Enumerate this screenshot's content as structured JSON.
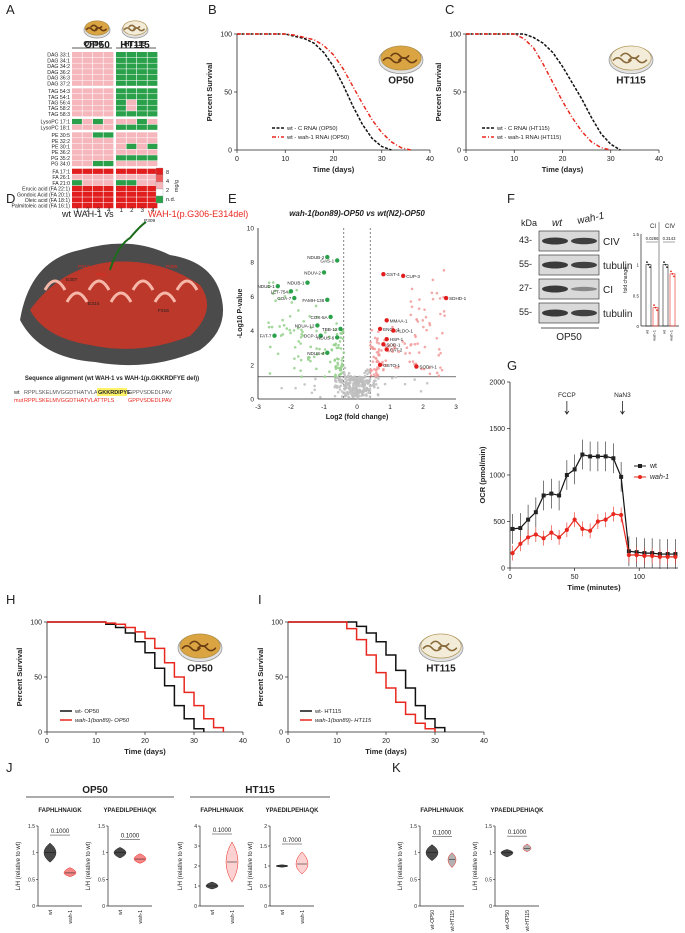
{
  "panel_letters": [
    "A",
    "B",
    "C",
    "D",
    "E",
    "F",
    "G",
    "H",
    "I",
    "J",
    "K"
  ],
  "colors": {
    "wt": "#111111",
    "mut": "#e8281e",
    "pink": "#f5b6bc",
    "green": "#2aa04a",
    "red": "#e11d1d",
    "grey": "#bdbdbd",
    "gold": "#c8902c"
  },
  "panelA": {
    "col_groups": [
      "OP50",
      "HT115"
    ],
    "dish_labels": [
      "OP50",
      "HT115"
    ],
    "col_numbers": [
      "1",
      "2",
      "3",
      "4",
      "1",
      "2",
      "3",
      "4"
    ],
    "rows": [
      "DAG 33:1",
      "DAG 34:1",
      "DAG 34:2",
      "DAG 36:2",
      "DAG 36:3",
      "DAG 37:2",
      "TAG 54:3",
      "TAG 54:1",
      "TAG 56:4",
      "TAG 58:2",
      "TAG 58:3",
      "LysoPC 17:1",
      "LysoPC 18:1",
      "PE 30:5",
      "PE 32:2",
      "PE 30:1",
      "PE 36:2",
      "PG 35:2",
      "PG 34:0",
      "FA 17:1",
      "FA 26:1",
      "FA 21:0",
      "Erucic acid (FA 22:1)",
      "Gondoic Acid (FA 20:1)",
      "Oleic acid (FA 18:1)",
      "Palmitoleic acid (FA 16:1)"
    ],
    "legend_title": "mg/g",
    "legend_ticks": [
      "8",
      "4",
      "2",
      "n.d."
    ]
  },
  "panelB": {
    "dish_label": "OP50",
    "ylabel": "Percent Survival",
    "xlabel": "Time (days)",
    "legend": [
      "wt - C RNAi (OP50)",
      "wt - wah-1 RNAi (OP50)"
    ]
  },
  "panelC": {
    "dish_label": "HT115",
    "ylabel": "Percent Survival",
    "xlabel": "Time (days)",
    "legend": [
      "wt - C RNAi (HT115)",
      "wt - wah-1 RNAi (HT115)"
    ]
  },
  "panelD": {
    "title_wt": "wt WAH-1 vs",
    "title_mut": "WAH-1(p.G306-E314del)",
    "residues": [
      "P309",
      "P313",
      "E307",
      "T309",
      "E314",
      "P305",
      "F316"
    ],
    "align_title": "Sequence alignment (wt WAH-1 vs WAH-1(p.GKKRDFYE del))",
    "seq_wt_label": "wt",
    "seq_wt": "RPPLSKELMVGGDTHATVLATTPLS",
    "seq_wt_highlight": "GKKRDIPYE",
    "seq_wt_tail": "GPPVSDEDLPAV",
    "seq_mut_label": "mut",
    "seq_mut": "RPPLSKELMVGGDTHATVLATTPLS",
    "seq_mut_tail": "GPPVSDEDLPAV"
  },
  "panelE": {
    "title": "wah-1(bon89)-OP50 vs wt(N2)-OP50",
    "ylabel": "-Log10 P-value",
    "xlabel": "Log2 (fold change)",
    "down_labels": [
      "NDUB-2",
      "GAS-1",
      "NDUV-2",
      "NDUB-1",
      "NDUD-1",
      "LET-754",
      "COA-7",
      "FAMH-136",
      "COX-5A",
      "NDUA-12",
      "TBB-12",
      "DCP-1",
      "FAT-7",
      "NDUS-6",
      "NDUS-4"
    ],
    "up_labels": [
      "GST-4",
      "CUP-3",
      "SDHD-1",
      "MMAA-1",
      "ENOL-1",
      "ALDO-1",
      "HSP-1",
      "SOD-1",
      "CAT-2",
      "GSTO-1",
      "SODH-1"
    ]
  },
  "panelF": {
    "kda": [
      "43-",
      "55-",
      "27-",
      "55-"
    ],
    "blot_labels": [
      "CIV",
      "tubulin",
      "CI",
      "tubulin"
    ],
    "lanes": [
      "wt",
      "wah-1"
    ],
    "caption": "OP50",
    "bar_titles": [
      "CI",
      "CIV"
    ],
    "pvals": [
      "0.0286",
      "0.3143"
    ],
    "ylabel": "fold change",
    "bar_xlabels": [
      "wt",
      "wah-1",
      "wt",
      "wah-1"
    ]
  },
  "panelG": {
    "ylabel": "OCR (pmol/min)",
    "xlabel": "Time (minutes)",
    "annotations": [
      "FCCP",
      "NaN3"
    ],
    "legend": [
      "wt",
      "wah-1"
    ]
  },
  "panelH": {
    "dish_label": "OP50",
    "ylabel": "Percent Survival",
    "xlabel": "Time (days)",
    "legend": [
      "wt- OP50",
      "wah-1(bon89)- OP50"
    ]
  },
  "panelI": {
    "dish_label": "HT115",
    "ylabel": "Percent Survival",
    "xlabel": "Time (days)",
    "legend": [
      "wt- HT115",
      "wah-1(bon89)- HT115"
    ]
  },
  "panelJ": {
    "groups": [
      "OP50",
      "HT115"
    ],
    "peptides": [
      "FAPHLHNAIGK",
      "YPAEDILPEHIAQK",
      "FAPHLHNAIGK",
      "YPAEDILPEHIAQK"
    ],
    "pvals": [
      "0.1000",
      "0.1000",
      "0.1000",
      "0.7000"
    ],
    "ylabel": "L/H (relative to wt)",
    "xlabels": [
      "wt",
      "wah-1"
    ]
  },
  "panelK": {
    "peptides": [
      "FAPHLHNAIGK",
      "YPAEDILPEHIAQK"
    ],
    "pvals": [
      "0.1000",
      "0.1000"
    ],
    "ylabel": "L/H (relative to wt)",
    "xlabels": [
      "wt-OP50",
      "wt-HT115"
    ]
  },
  "chart_data": [
    {
      "id": "B",
      "type": "line",
      "title": "OP50",
      "xlabel": "Time (days)",
      "ylabel": "Percent Survival",
      "xlim": [
        0,
        40
      ],
      "ylim": [
        0,
        100
      ],
      "xticks": [
        0,
        10,
        20,
        30,
        40
      ],
      "yticks": [
        0,
        50,
        100
      ],
      "series": [
        {
          "name": "wt - C RNAi (OP50)",
          "x": [
            0,
            10,
            12,
            14,
            16,
            18,
            20,
            22,
            24,
            26,
            28,
            30,
            32
          ],
          "y": [
            100,
            100,
            98,
            96,
            92,
            84,
            72,
            56,
            38,
            22,
            10,
            3,
            0
          ]
        },
        {
          "name": "wt - wah-1 RNAi (OP50)",
          "x": [
            0,
            10,
            12,
            14,
            16,
            18,
            20,
            22,
            24,
            26,
            28,
            30,
            32,
            34,
            36
          ],
          "y": [
            100,
            100,
            99,
            97,
            95,
            90,
            82,
            70,
            55,
            40,
            26,
            15,
            7,
            2,
            0
          ]
        }
      ]
    },
    {
      "id": "C",
      "type": "line",
      "title": "HT115",
      "xlabel": "Time (days)",
      "ylabel": "Percent Survival",
      "xlim": [
        0,
        40
      ],
      "ylim": [
        0,
        100
      ],
      "xticks": [
        0,
        10,
        20,
        30,
        40
      ],
      "yticks": [
        0,
        50,
        100
      ],
      "series": [
        {
          "name": "wt - C RNAi (HT115)",
          "x": [
            0,
            12,
            14,
            16,
            18,
            20,
            22,
            24,
            26,
            28,
            30,
            32
          ],
          "y": [
            100,
            100,
            97,
            92,
            84,
            72,
            58,
            44,
            28,
            14,
            5,
            0
          ]
        },
        {
          "name": "wt - wah-1 RNAi (HT115)",
          "x": [
            0,
            10,
            12,
            14,
            16,
            18,
            20,
            22,
            24,
            26,
            28,
            30
          ],
          "y": [
            100,
            100,
            96,
            88,
            74,
            58,
            42,
            28,
            16,
            7,
            2,
            0
          ]
        }
      ]
    },
    {
      "id": "G",
      "type": "line",
      "title": "",
      "xlabel": "Time (minutes)",
      "ylabel": "OCR (pmol/min)",
      "xlim": [
        0,
        130
      ],
      "ylim": [
        0,
        2000
      ],
      "xticks": [
        0,
        50,
        100
      ],
      "yticks": [
        0,
        500,
        1000,
        1500,
        2000
      ],
      "series": [
        {
          "name": "wt",
          "x": [
            2,
            8,
            14,
            20,
            26,
            32,
            38,
            44,
            50,
            56,
            62,
            68,
            74,
            80,
            86,
            92,
            98,
            104,
            110,
            116,
            122,
            128
          ],
          "y": [
            420,
            430,
            520,
            600,
            780,
            800,
            780,
            1000,
            1060,
            1220,
            1200,
            1200,
            1200,
            1180,
            980,
            180,
            170,
            160,
            160,
            150,
            150,
            150
          ]
        },
        {
          "name": "wah-1",
          "x": [
            2,
            8,
            14,
            20,
            26,
            32,
            38,
            44,
            50,
            56,
            62,
            68,
            74,
            80,
            86,
            92,
            98,
            104,
            110,
            116,
            122,
            128
          ],
          "y": [
            160,
            260,
            330,
            360,
            320,
            380,
            330,
            410,
            520,
            420,
            400,
            500,
            520,
            580,
            570,
            140,
            140,
            130,
            130,
            120,
            120,
            120
          ]
        }
      ]
    },
    {
      "id": "H",
      "type": "line",
      "title": "OP50",
      "xlabel": "Time (days)",
      "ylabel": "Percent Survival",
      "xlim": [
        0,
        40
      ],
      "ylim": [
        0,
        100
      ],
      "xticks": [
        0,
        10,
        20,
        30,
        40
      ],
      "yticks": [
        0,
        50,
        100
      ],
      "series": [
        {
          "name": "wt- OP50",
          "x": [
            0,
            10,
            12,
            14,
            16,
            18,
            20,
            22,
            24,
            26,
            28,
            30,
            32
          ],
          "y": [
            100,
            100,
            98,
            95,
            90,
            82,
            72,
            58,
            42,
            24,
            12,
            3,
            0
          ]
        },
        {
          "name": "wah-1(bon89)- OP50",
          "x": [
            0,
            10,
            12,
            14,
            16,
            18,
            20,
            22,
            24,
            26,
            28,
            30,
            32,
            34,
            36
          ],
          "y": [
            100,
            100,
            99,
            98,
            95,
            91,
            85,
            76,
            63,
            50,
            36,
            24,
            12,
            4,
            0
          ]
        }
      ]
    },
    {
      "id": "I",
      "type": "line",
      "title": "HT115",
      "xlabel": "Time (days)",
      "ylabel": "Percent Survival",
      "xlim": [
        0,
        40
      ],
      "ylim": [
        0,
        100
      ],
      "xticks": [
        0,
        10,
        20,
        30,
        40
      ],
      "yticks": [
        0,
        50,
        100
      ],
      "series": [
        {
          "name": "wt- HT115",
          "x": [
            0,
            12,
            14,
            16,
            18,
            20,
            22,
            24,
            26,
            28,
            30,
            32
          ],
          "y": [
            100,
            100,
            96,
            90,
            82,
            70,
            56,
            40,
            24,
            12,
            4,
            0
          ]
        },
        {
          "name": "wah-1(bon89)- HT115",
          "x": [
            0,
            10,
            12,
            14,
            16,
            18,
            20,
            22,
            24,
            26,
            28,
            30
          ],
          "y": [
            100,
            100,
            94,
            84,
            70,
            54,
            40,
            27,
            16,
            8,
            3,
            0
          ]
        }
      ]
    },
    {
      "id": "E",
      "type": "scatter",
      "title": "wah-1(bon89)-OP50 vs wt(N2)-OP50",
      "xlabel": "Log2 (fold change)",
      "ylabel": "-Log10 P-value",
      "xlim": [
        -3,
        3
      ],
      "ylim": [
        0,
        10
      ],
      "xticks": [
        -3,
        -2,
        -1,
        0,
        1,
        2,
        3
      ],
      "yticks": [
        0,
        2,
        4,
        6,
        8,
        10
      ],
      "threshold_y": 1.3,
      "threshold_x": [
        -0.4,
        0.4
      ],
      "labeled_points": [
        {
          "label": "NDUB-2",
          "x": -0.9,
          "y": 8.3,
          "dir": "down"
        },
        {
          "label": "GAS-1",
          "x": -0.6,
          "y": 8.1,
          "dir": "down"
        },
        {
          "label": "NDUV-2",
          "x": -1.0,
          "y": 7.4,
          "dir": "down"
        },
        {
          "label": "NDUB-1",
          "x": -1.5,
          "y": 6.8,
          "dir": "down"
        },
        {
          "label": "NDUD-1",
          "x": -2.4,
          "y": 6.6,
          "dir": "down"
        },
        {
          "label": "LET-754",
          "x": -2.0,
          "y": 6.3,
          "dir": "down"
        },
        {
          "label": "COA-7",
          "x": -1.9,
          "y": 5.9,
          "dir": "down"
        },
        {
          "label": "FAMH-136",
          "x": -0.9,
          "y": 5.8,
          "dir": "down"
        },
        {
          "label": "COX-5A",
          "x": -0.8,
          "y": 4.8,
          "dir": "down"
        },
        {
          "label": "NDUA-12",
          "x": -1.2,
          "y": 4.3,
          "dir": "down"
        },
        {
          "label": "TBB-12",
          "x": -0.5,
          "y": 4.1,
          "dir": "down"
        },
        {
          "label": "DCP-1",
          "x": -1.1,
          "y": 3.7,
          "dir": "down"
        },
        {
          "label": "FAT-7",
          "x": -2.5,
          "y": 3.7,
          "dir": "down"
        },
        {
          "label": "NDUS-6",
          "x": -0.6,
          "y": 3.6,
          "dir": "down"
        },
        {
          "label": "NDUS-4",
          "x": -0.9,
          "y": 2.7,
          "dir": "down"
        },
        {
          "label": "GST-4",
          "x": 0.8,
          "y": 7.3,
          "dir": "up"
        },
        {
          "label": "CUP-3",
          "x": 1.4,
          "y": 7.2,
          "dir": "up"
        },
        {
          "label": "SDHD-1",
          "x": 2.7,
          "y": 5.9,
          "dir": "up"
        },
        {
          "label": "MMAA-1",
          "x": 0.9,
          "y": 4.6,
          "dir": "up"
        },
        {
          "label": "ENOL-1",
          "x": 0.7,
          "y": 4.1,
          "dir": "up"
        },
        {
          "label": "ALDO-1",
          "x": 1.1,
          "y": 4.0,
          "dir": "up"
        },
        {
          "label": "HSP-1",
          "x": 0.9,
          "y": 3.5,
          "dir": "up"
        },
        {
          "label": "SOD-1",
          "x": 0.8,
          "y": 3.2,
          "dir": "up"
        },
        {
          "label": "CAT-2",
          "x": 0.9,
          "y": 2.9,
          "dir": "up"
        },
        {
          "label": "GSTO-1",
          "x": 0.7,
          "y": 2.0,
          "dir": "up"
        },
        {
          "label": "SODH-1",
          "x": 1.8,
          "y": 1.9,
          "dir": "up"
        }
      ]
    },
    {
      "id": "F_bars",
      "type": "bar",
      "title": "",
      "categories": [
        "wt",
        "wah-1",
        "wt",
        "wah-1"
      ],
      "groups": [
        "CI",
        "CI",
        "CIV",
        "CIV"
      ],
      "values": [
        1.0,
        0.3,
        1.0,
        0.85
      ],
      "ylabel": "fold change",
      "ylim": [
        0,
        1.5
      ],
      "yticks": [
        0,
        0.5,
        1.0,
        1.5
      ]
    },
    {
      "id": "J_K",
      "type": "violin",
      "title": "",
      "ylabel": "L/H (relative to wt)",
      "panels": [
        {
          "group": "OP50",
          "peptide": "FAPHLHNAIGK",
          "ylim": [
            0,
            1.5
          ],
          "yticks": [
            0.0,
            0.5,
            1.0,
            1.5
          ],
          "medians": [
            1.0,
            0.62
          ],
          "mins": [
            0.82,
            0.55
          ],
          "maxs": [
            1.18,
            0.72
          ],
          "pval": "0.1000"
        },
        {
          "group": "OP50",
          "peptide": "YPAEDILPEHIAQK",
          "ylim": [
            0,
            1.5
          ],
          "yticks": [
            0.0,
            0.5,
            1.0,
            1.5
          ],
          "medians": [
            1.0,
            0.88
          ],
          "mins": [
            0.9,
            0.8
          ],
          "maxs": [
            1.1,
            0.98
          ],
          "pval": "0.1000"
        },
        {
          "group": "HT115",
          "peptide": "FAPHLHNAIGK",
          "ylim": [
            0,
            4
          ],
          "yticks": [
            0,
            1,
            2,
            3,
            4
          ],
          "medians": [
            1.0,
            2.2
          ],
          "mins": [
            0.85,
            1.2
          ],
          "maxs": [
            1.2,
            3.2
          ],
          "pval": "0.1000"
        },
        {
          "group": "HT115",
          "peptide": "YPAEDILPEHIAQK",
          "ylim": [
            0,
            2
          ],
          "yticks": [
            0.0,
            0.5,
            1.0,
            1.5,
            2.0
          ],
          "medians": [
            1.0,
            1.05
          ],
          "mins": [
            0.97,
            0.8
          ],
          "maxs": [
            1.03,
            1.35
          ],
          "pval": "0.7000"
        },
        {
          "group": "K",
          "peptide": "FAPHLHNAIGK",
          "ylim": [
            0,
            1.5
          ],
          "yticks": [
            0.0,
            0.5,
            1.0,
            1.5
          ],
          "medians": [
            1.0,
            0.87
          ],
          "mins": [
            0.85,
            0.72
          ],
          "maxs": [
            1.15,
            1.0
          ],
          "pval": "0.1000"
        },
        {
          "group": "K",
          "peptide": "YPAEDILPEHIAQK",
          "ylim": [
            0,
            1.5
          ],
          "yticks": [
            0.0,
            0.5,
            1.0,
            1.5
          ],
          "medians": [
            1.0,
            1.08
          ],
          "mins": [
            0.92,
            1.02
          ],
          "maxs": [
            1.06,
            1.16
          ],
          "pval": "0.1000"
        }
      ]
    }
  ]
}
